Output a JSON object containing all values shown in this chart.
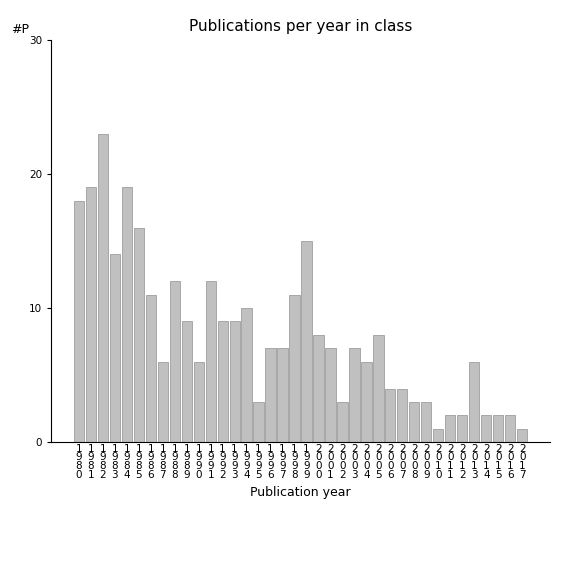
{
  "title": "Publications per year in class",
  "xlabel": "Publication year",
  "ylabel": "#P",
  "years": [
    "1980",
    "1981",
    "1982",
    "1983",
    "1984",
    "1985",
    "1986",
    "1987",
    "1988",
    "1989",
    "1990",
    "1991",
    "1992",
    "1993",
    "1994",
    "1995",
    "1996",
    "1997",
    "1998",
    "1999",
    "2000",
    "2001",
    "2002",
    "2003",
    "2004",
    "2005",
    "2006",
    "2007",
    "2008",
    "2009",
    "2010",
    "2011",
    "2012",
    "2013",
    "2014",
    "2015",
    "2016",
    "2017"
  ],
  "values": [
    18,
    19,
    23,
    14,
    19,
    16,
    11,
    6,
    12,
    9,
    6,
    12,
    9,
    9,
    10,
    3,
    7,
    7,
    11,
    15,
    8,
    7,
    3,
    7,
    6,
    8,
    4,
    4,
    3,
    3,
    1,
    2,
    2,
    6,
    2,
    2,
    2,
    1
  ],
  "bar_color": "#c0c0c0",
  "bar_edge_color": "#909090",
  "ylim": [
    0,
    30
  ],
  "yticks": [
    0,
    10,
    20,
    30
  ],
  "background_color": "#ffffff",
  "title_fontsize": 11,
  "label_fontsize": 9,
  "tick_fontsize": 7.5
}
